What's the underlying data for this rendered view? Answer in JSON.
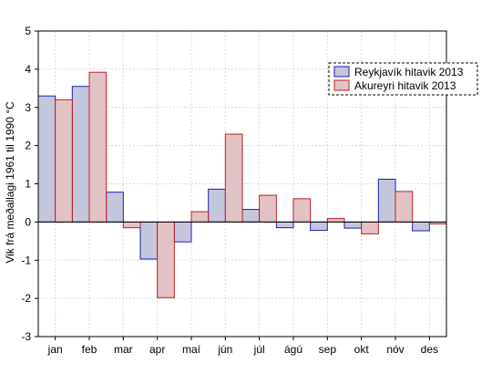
{
  "chart_data": {
    "type": "bar",
    "title": "",
    "xlabel": "",
    "ylabel": "Vik frá meðallagi 1961 til 1990 °C",
    "ylim": [
      -3,
      5
    ],
    "yticks": [
      5,
      4,
      3,
      2,
      1,
      0,
      -1,
      -2,
      -3
    ],
    "grid": true,
    "legend_position": "top-right",
    "categories": [
      "jan",
      "feb",
      "mar",
      "apr",
      "maí",
      "jún",
      "júl",
      "ágú",
      "sep",
      "okt",
      "nóv",
      "des"
    ],
    "series": [
      {
        "name": "Reykjavík hitavik 2013",
        "fill": "#c4c6dc",
        "stroke": "#1c1fb0",
        "values": [
          3.3,
          3.55,
          0.78,
          -0.97,
          -0.52,
          0.86,
          0.33,
          -0.15,
          -0.22,
          -0.16,
          1.12,
          -0.23
        ]
      },
      {
        "name": "Akureyri hitavik 2013",
        "fill": "#e1c3c5",
        "stroke": "#c41e22",
        "values": [
          3.2,
          3.92,
          -0.15,
          -1.98,
          0.27,
          2.3,
          0.7,
          0.61,
          0.09,
          -0.31,
          0.8,
          -0.05
        ]
      }
    ]
  }
}
